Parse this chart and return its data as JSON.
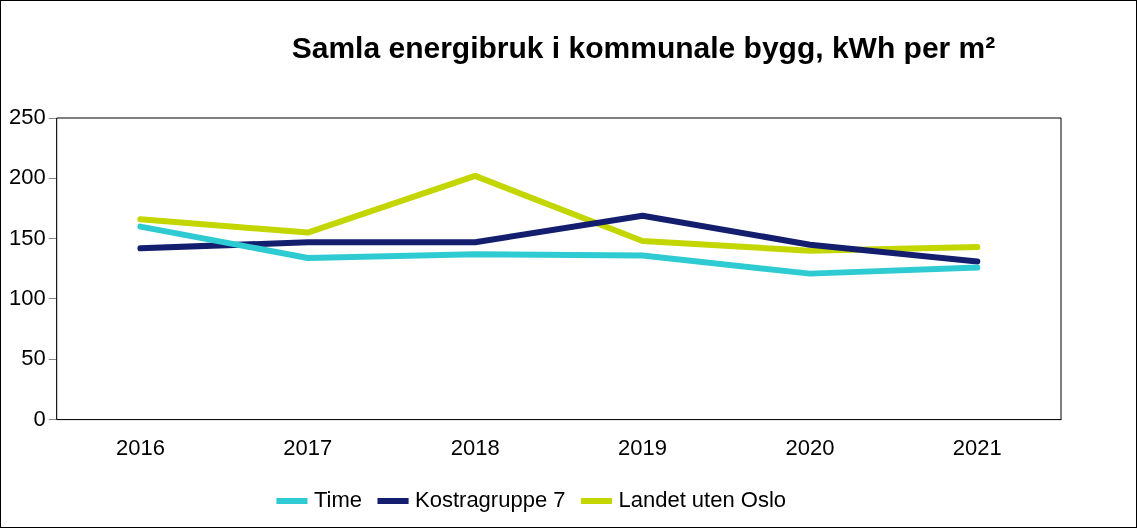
{
  "chart_data": {
    "type": "line",
    "title": "Samla energibruk i kommunale bygg, kWh per m²",
    "categories": [
      "2016",
      "2017",
      "2018",
      "2019",
      "2020",
      "2021"
    ],
    "series": [
      {
        "name": "Time",
        "color": "#2ecbd3",
        "values": [
          160,
          134,
          137,
          136,
          121,
          126
        ]
      },
      {
        "name": "Kostragruppe 7",
        "color": "#141e6e",
        "values": [
          142,
          147,
          147,
          169,
          145,
          131
        ]
      },
      {
        "name": "Landet uten Oslo",
        "color": "#c4d600",
        "values": [
          166,
          155,
          202,
          148,
          140,
          143
        ]
      }
    ],
    "ylim": [
      0,
      250
    ],
    "yticks": [
      0,
      50,
      100,
      150,
      200,
      250
    ],
    "grid": false,
    "legend": "bottom",
    "marker": "none",
    "line_style": "solid"
  }
}
